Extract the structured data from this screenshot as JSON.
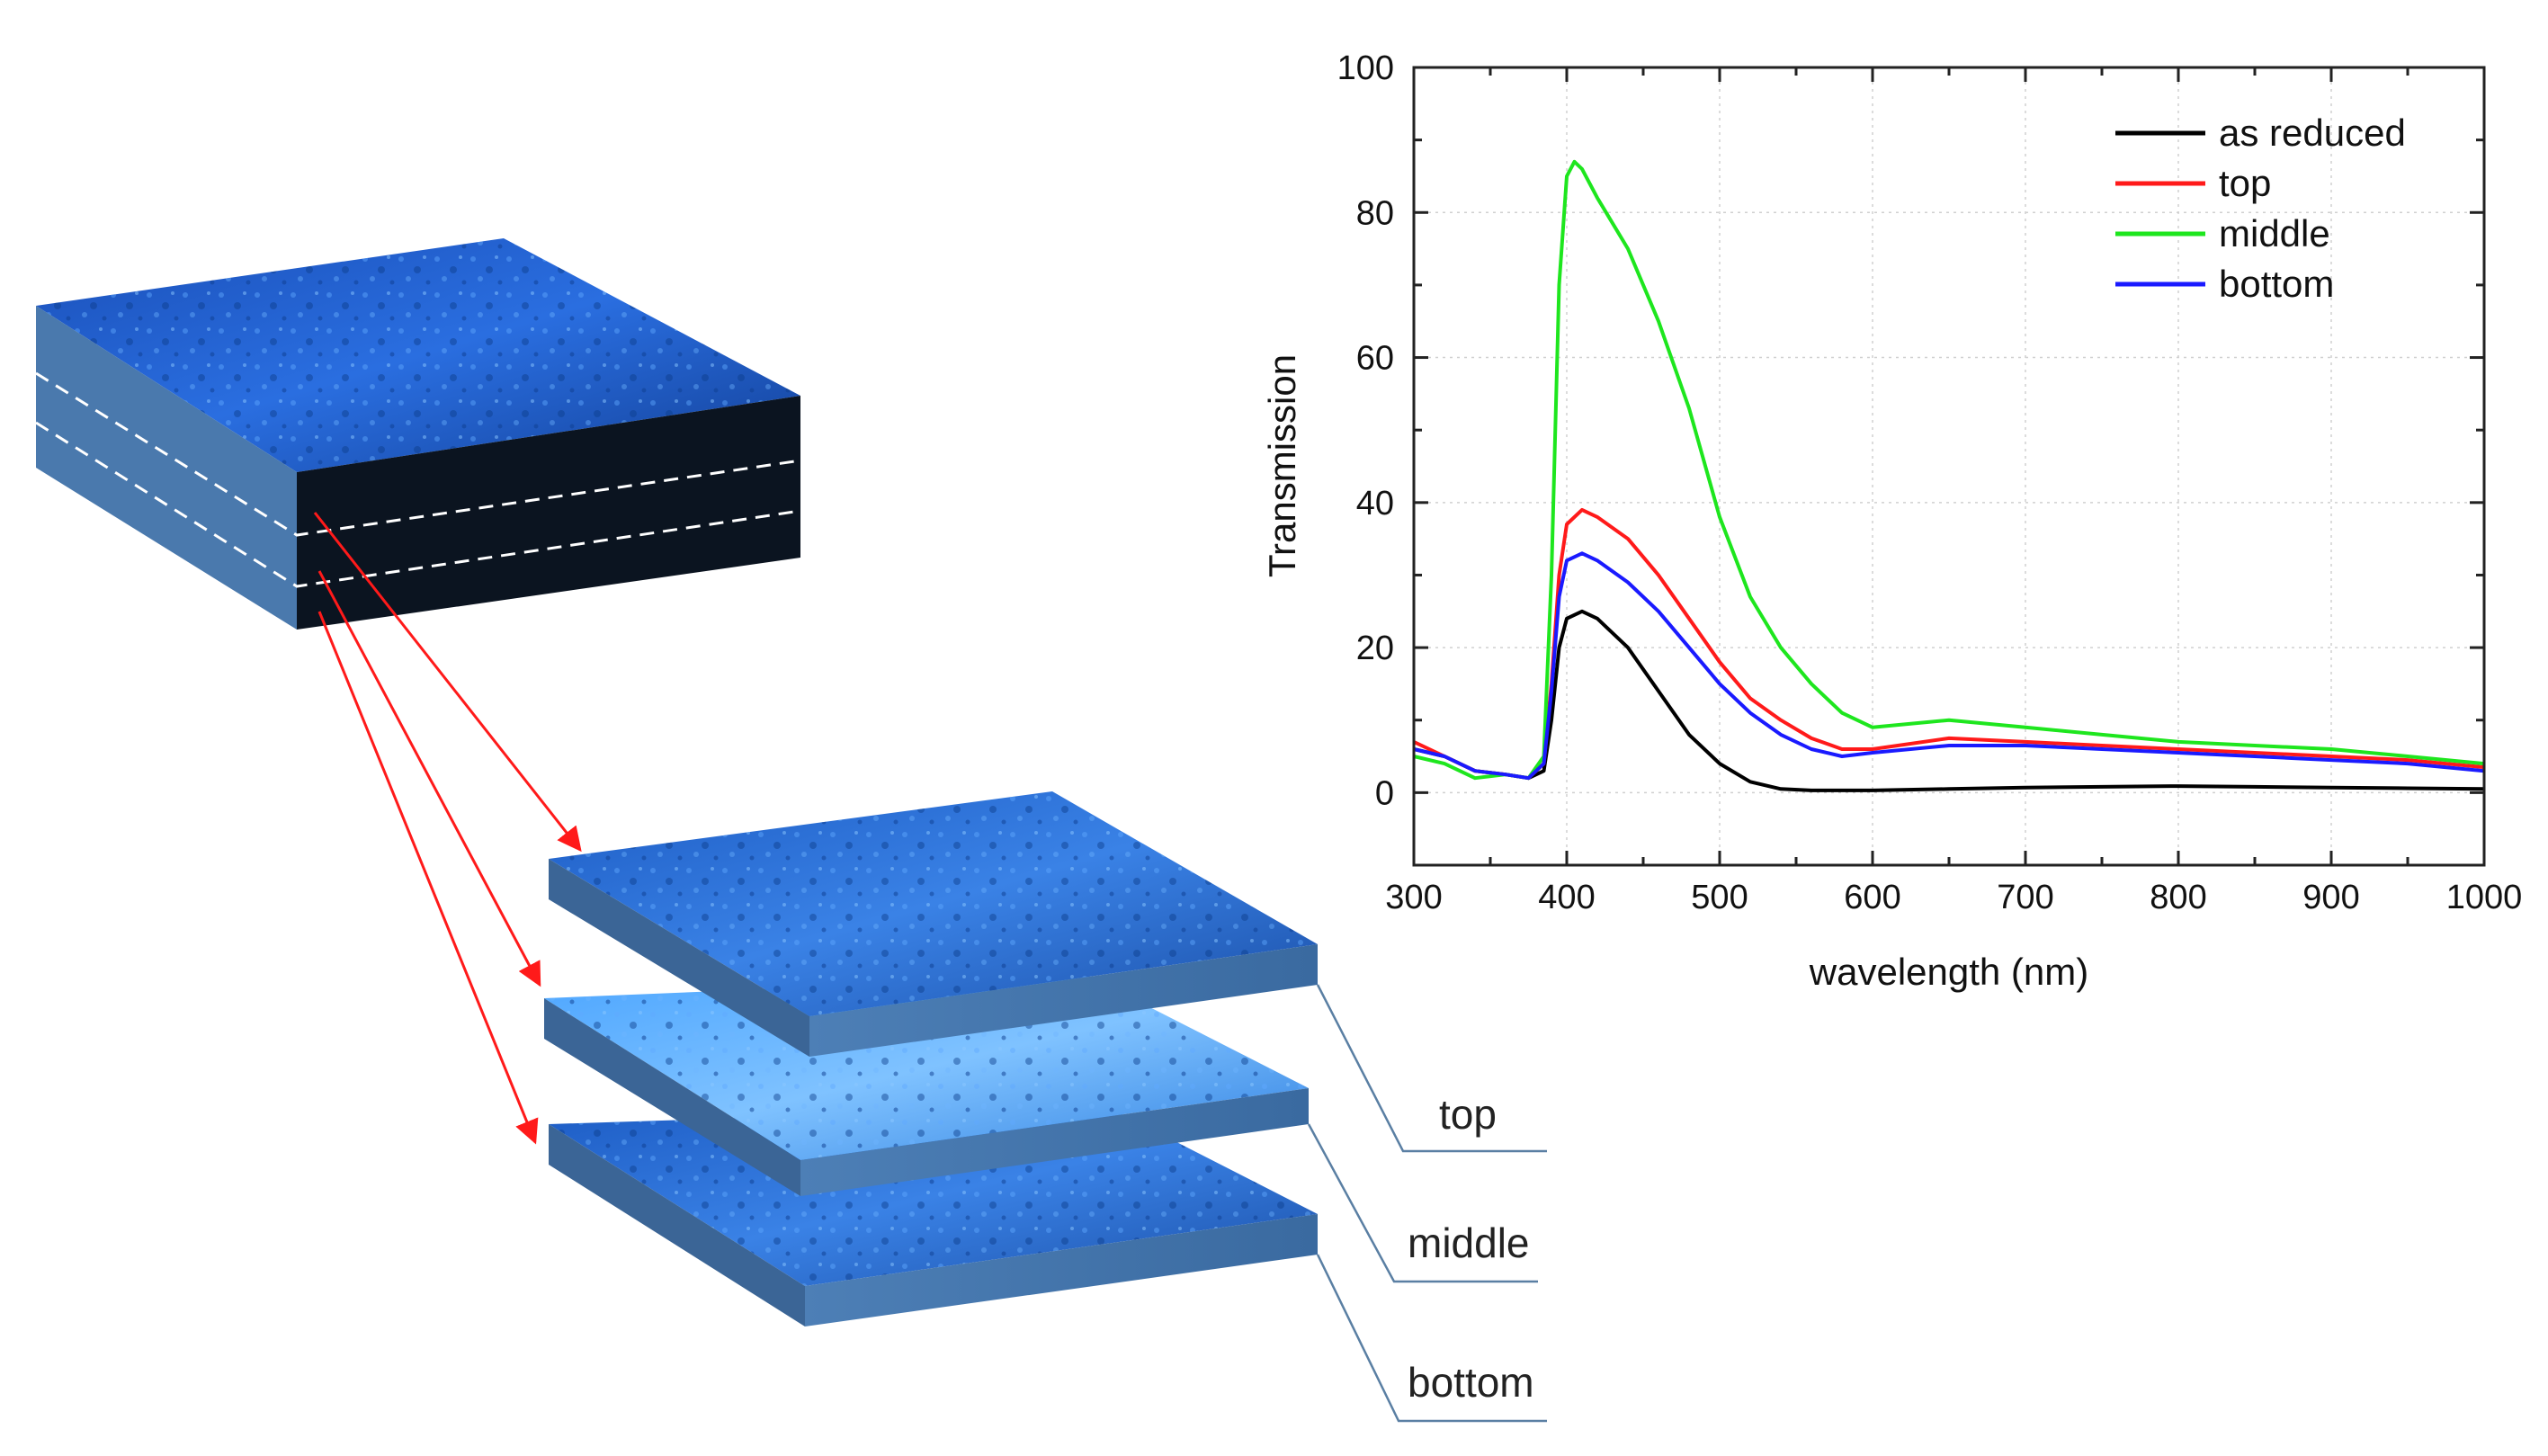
{
  "diagram": {
    "layer_labels": [
      "top",
      "middle",
      "bottom"
    ]
  },
  "chart_data": {
    "type": "line",
    "xlabel": "wavelength (nm)",
    "ylabel": "Transmission",
    "xlim": [
      300,
      1000
    ],
    "ylim": [
      -10,
      100
    ],
    "xticks": [
      300,
      400,
      500,
      600,
      700,
      800,
      900,
      1000
    ],
    "yticks": [
      0,
      20,
      40,
      60,
      80,
      100
    ],
    "grid": true,
    "legend_position": "top-right",
    "series": [
      {
        "name": "as reduced",
        "color": "#000000",
        "x": [
          300,
          320,
          340,
          360,
          375,
          385,
          390,
          395,
          400,
          410,
          420,
          440,
          460,
          480,
          500,
          520,
          540,
          560,
          580,
          600,
          650,
          700,
          750,
          800,
          850,
          900,
          950,
          1000
        ],
        "y": [
          6,
          5,
          3,
          2.5,
          2,
          3,
          10,
          20,
          24,
          25,
          24,
          20,
          14,
          8,
          4,
          1.5,
          0.5,
          0.3,
          0.3,
          0.3,
          0.5,
          0.7,
          0.8,
          0.9,
          0.8,
          0.7,
          0.6,
          0.5
        ]
      },
      {
        "name": "top",
        "color": "#ff1a1a",
        "x": [
          300,
          320,
          340,
          360,
          375,
          385,
          390,
          395,
          400,
          410,
          420,
          440,
          460,
          480,
          500,
          520,
          540,
          560,
          580,
          600,
          650,
          700,
          750,
          800,
          850,
          900,
          950,
          1000
        ],
        "y": [
          7,
          5,
          3,
          2.5,
          2,
          4,
          15,
          30,
          37,
          39,
          38,
          35,
          30,
          24,
          18,
          13,
          10,
          7.5,
          6,
          6,
          7.5,
          7,
          6.5,
          6,
          5.5,
          5,
          4.5,
          3.5
        ]
      },
      {
        "name": "middle",
        "color": "#1ee61e",
        "x": [
          300,
          320,
          340,
          360,
          375,
          385,
          390,
          395,
          400,
          405,
          410,
          420,
          440,
          460,
          480,
          500,
          520,
          540,
          560,
          580,
          600,
          650,
          700,
          750,
          800,
          850,
          900,
          950,
          1000
        ],
        "y": [
          5,
          4,
          2,
          2.5,
          2,
          5,
          30,
          70,
          85,
          87,
          86,
          82,
          75,
          65,
          53,
          38,
          27,
          20,
          15,
          11,
          9,
          10,
          9,
          8,
          7,
          6.5,
          6,
          5,
          4
        ]
      },
      {
        "name": "bottom",
        "color": "#1a1aff",
        "x": [
          300,
          320,
          340,
          360,
          375,
          385,
          390,
          395,
          400,
          410,
          420,
          440,
          460,
          480,
          500,
          520,
          540,
          560,
          580,
          600,
          650,
          700,
          750,
          800,
          850,
          900,
          950,
          1000
        ],
        "y": [
          6,
          5,
          3,
          2.5,
          2,
          4,
          14,
          27,
          32,
          33,
          32,
          29,
          25,
          20,
          15,
          11,
          8,
          6,
          5,
          5.5,
          6.5,
          6.5,
          6,
          5.5,
          5,
          4.5,
          4,
          3
        ]
      }
    ]
  }
}
